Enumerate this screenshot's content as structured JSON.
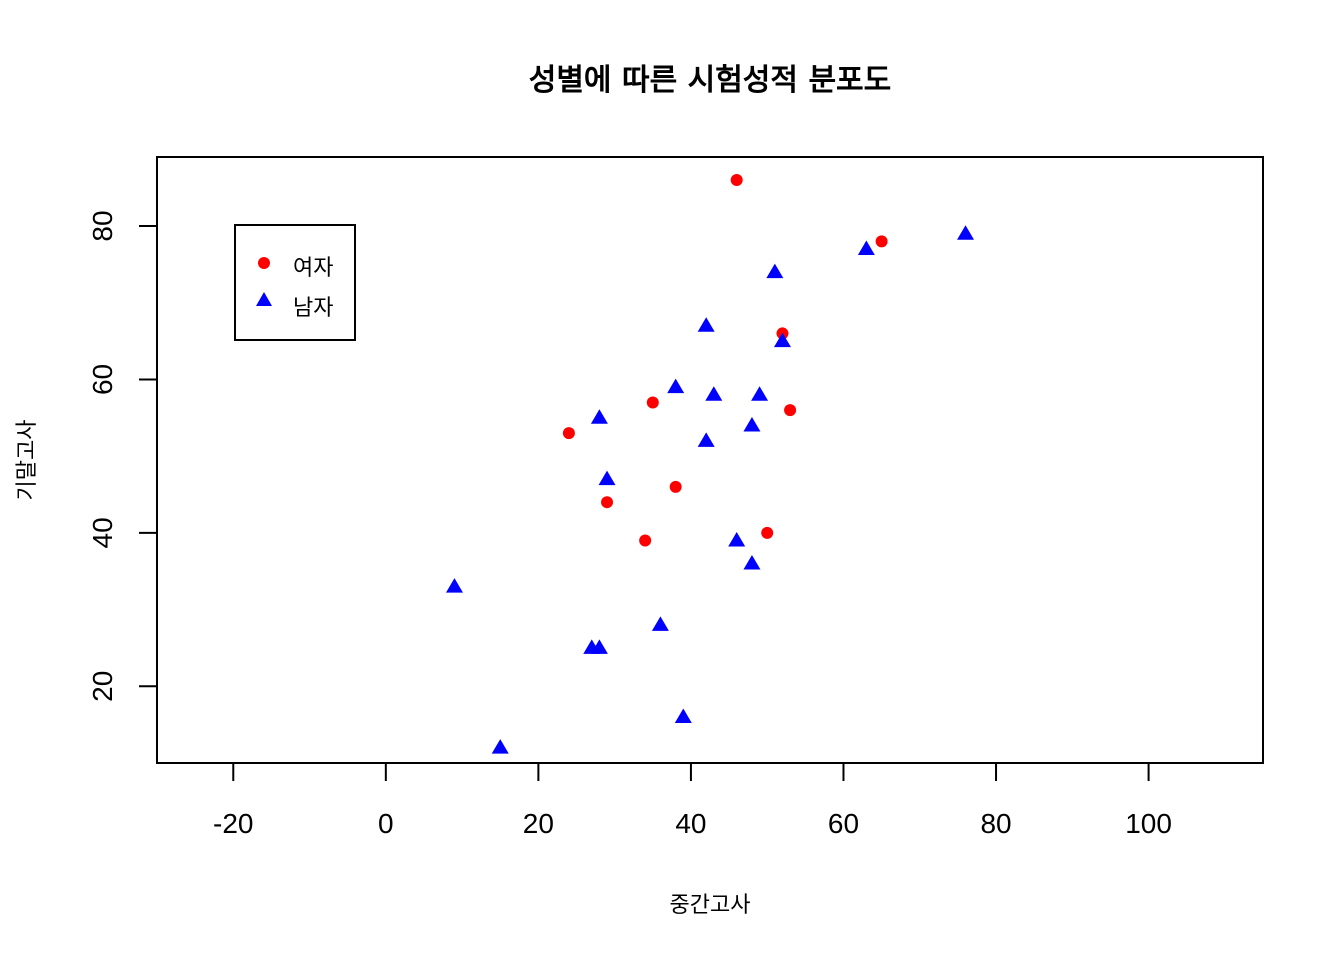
{
  "chart_data": {
    "type": "scatter",
    "title": "성별에 따른 시험성적 분포도",
    "xlabel": "중간고사",
    "ylabel": "기말고사",
    "xlim": [
      -30,
      115
    ],
    "ylim": [
      10,
      89
    ],
    "xticks": [
      -20,
      0,
      20,
      40,
      60,
      80,
      100
    ],
    "yticks": [
      20,
      40,
      60,
      80
    ],
    "grid": false,
    "legend_position": "top-left",
    "series": [
      {
        "name": "여자",
        "marker": "circle",
        "color": "#ff0000",
        "points": [
          {
            "x": 46,
            "y": 86
          },
          {
            "x": 65,
            "y": 78
          },
          {
            "x": 52,
            "y": 66
          },
          {
            "x": 35,
            "y": 57
          },
          {
            "x": 53,
            "y": 56
          },
          {
            "x": 24,
            "y": 53
          },
          {
            "x": 38,
            "y": 46
          },
          {
            "x": 29,
            "y": 44
          },
          {
            "x": 50,
            "y": 40
          },
          {
            "x": 34,
            "y": 39
          }
        ]
      },
      {
        "name": "남자",
        "marker": "triangle",
        "color": "#0000ff",
        "points": [
          {
            "x": 76,
            "y": 79
          },
          {
            "x": 63,
            "y": 77
          },
          {
            "x": 51,
            "y": 74
          },
          {
            "x": 42,
            "y": 67
          },
          {
            "x": 52,
            "y": 65
          },
          {
            "x": 38,
            "y": 59
          },
          {
            "x": 43,
            "y": 58
          },
          {
            "x": 49,
            "y": 58
          },
          {
            "x": 28,
            "y": 55
          },
          {
            "x": 48,
            "y": 54
          },
          {
            "x": 42,
            "y": 52
          },
          {
            "x": 29,
            "y": 47
          },
          {
            "x": 46,
            "y": 39
          },
          {
            "x": 48,
            "y": 36
          },
          {
            "x": 9,
            "y": 33
          },
          {
            "x": 36,
            "y": 28
          },
          {
            "x": 27,
            "y": 25
          },
          {
            "x": 28,
            "y": 25
          },
          {
            "x": 39,
            "y": 16
          },
          {
            "x": 15,
            "y": 12
          }
        ]
      }
    ]
  }
}
